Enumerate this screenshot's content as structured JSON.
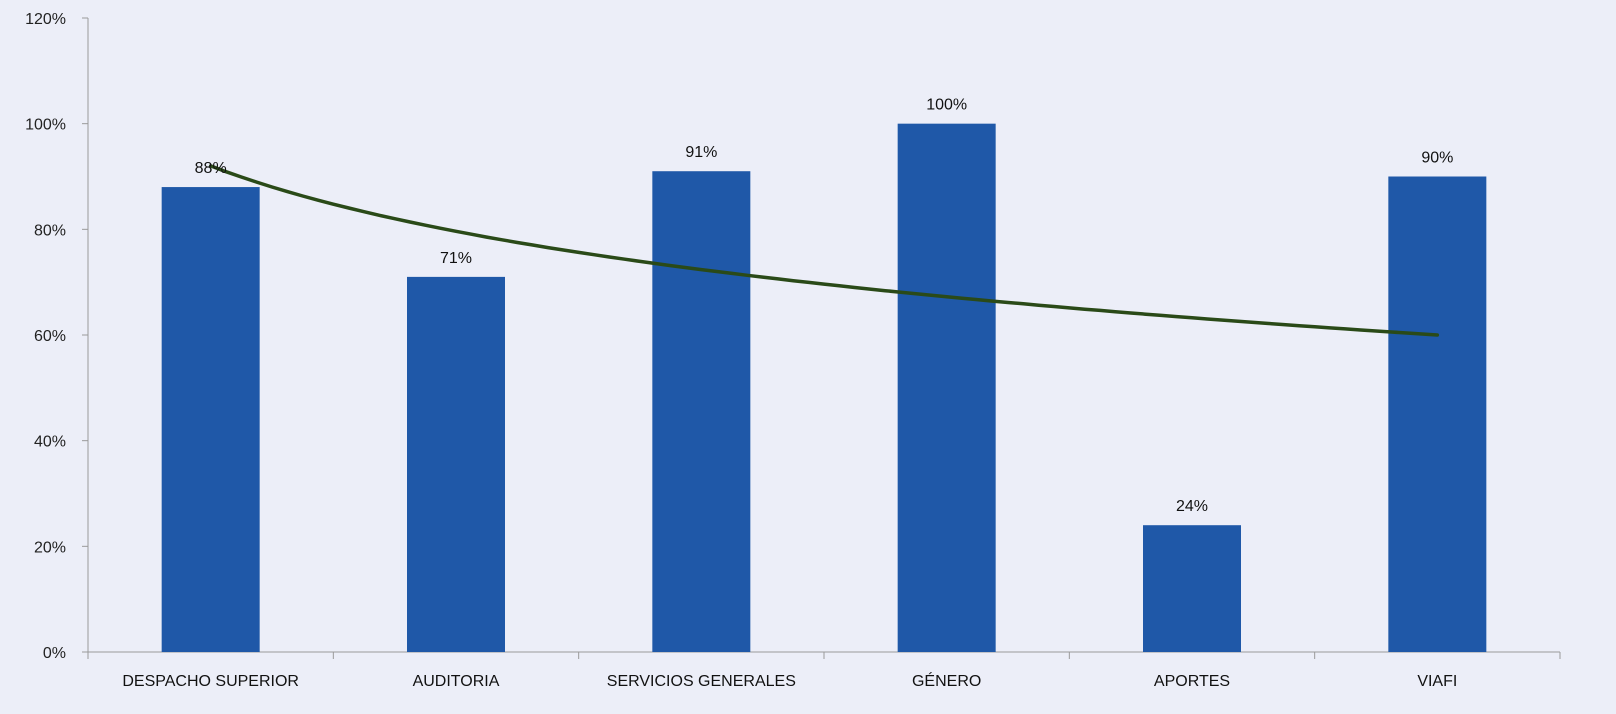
{
  "chart_data": {
    "type": "bar",
    "categories": [
      "DESPACHO SUPERIOR",
      "AUDITORIA",
      "SERVICIOS GENERALES",
      "GÉNERO",
      "APORTES",
      "VIAFI"
    ],
    "values": [
      88,
      71,
      91,
      100,
      24,
      90
    ],
    "data_labels": [
      "88%",
      "71%",
      "91%",
      "100%",
      "24%",
      "90%"
    ],
    "ylim": [
      0,
      120
    ],
    "yticks": [
      0,
      20,
      40,
      60,
      80,
      100,
      120
    ],
    "ytick_labels": [
      "0%",
      "20%",
      "40%",
      "60%",
      "80%",
      "100%",
      "120%"
    ],
    "trendline": {
      "type": "logarithmic",
      "start_value": 92,
      "end_value": 60
    },
    "title": "",
    "xlabel": "",
    "ylabel": "",
    "grid": false,
    "legend": "none",
    "colors": {
      "bar": "#1f58a8",
      "trendline": "#2a4a18",
      "background": "#eceef8",
      "axis": "#9a9a9a"
    }
  }
}
